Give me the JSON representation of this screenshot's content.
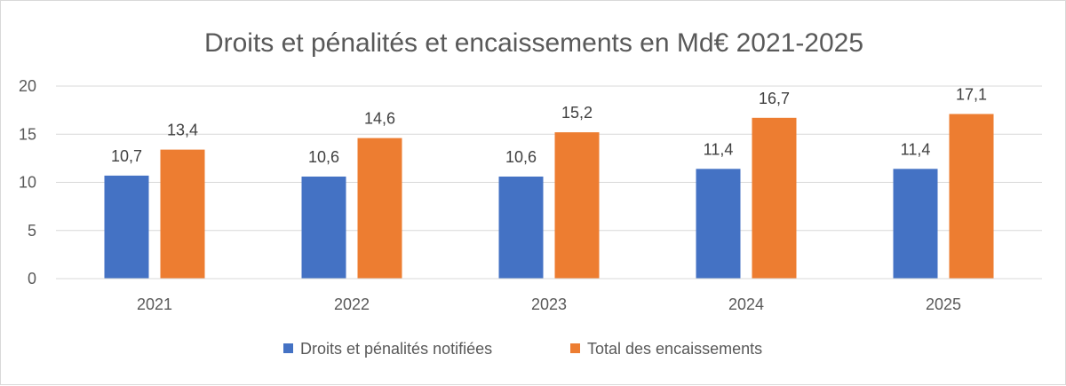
{
  "chart_data": {
    "type": "bar",
    "title": "Droits et pénalités et encaissements en Md€ 2021-2025",
    "categories": [
      "2021",
      "2022",
      "2023",
      "2024",
      "2025"
    ],
    "series": [
      {
        "name": "Droits et pénalités notifiées",
        "values": [
          10.7,
          10.6,
          10.6,
          11.4,
          11.4
        ],
        "labels": [
          "10,7",
          "10,6",
          "10,6",
          "11,4",
          "11,4"
        ],
        "color": "#4472C4"
      },
      {
        "name": "Total des encaissements",
        "values": [
          13.4,
          14.6,
          15.2,
          16.7,
          17.1
        ],
        "labels": [
          "13,4",
          "14,6",
          "15,2",
          "16,7",
          "17,1"
        ],
        "color": "#ED7D31"
      }
    ],
    "ylim": [
      0,
      20
    ],
    "yticks": [
      "0",
      "5",
      "10",
      "15",
      "20"
    ],
    "xlabel": "",
    "ylabel": "",
    "grid": true,
    "legend": "bottom"
  }
}
